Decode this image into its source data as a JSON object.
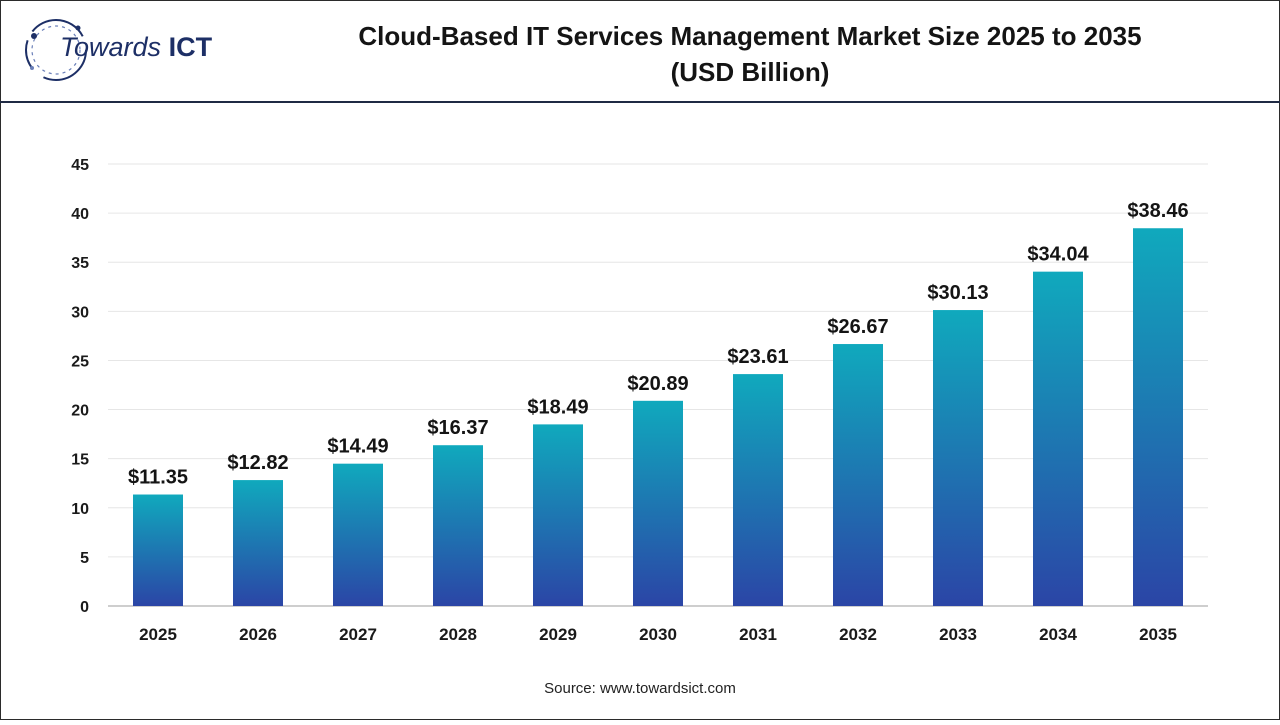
{
  "logo": {
    "text_a": "Towards ",
    "text_b": "ICT"
  },
  "header": {
    "title_line1": "Cloud-Based IT Services Management Market Size 2025 to 2035",
    "title_line2": "(USD Billion)"
  },
  "source": "Source: www.towardsict.com",
  "colors": {
    "bar_top": "#10a9bd",
    "bar_bottom": "#2b45a6",
    "grid": "#e6e6e6",
    "axis": "#bdbdbd"
  },
  "chart_data": {
    "type": "bar",
    "categories": [
      "2025",
      "2026",
      "2027",
      "2028",
      "2029",
      "2030",
      "2031",
      "2032",
      "2033",
      "2034",
      "2035"
    ],
    "values": [
      11.35,
      12.82,
      14.49,
      16.37,
      18.49,
      20.89,
      23.61,
      26.67,
      30.13,
      34.04,
      38.46
    ],
    "data_labels": [
      "$11.35",
      "$12.82",
      "$14.49",
      "$16.37",
      "$18.49",
      "$20.89",
      "$23.61",
      "$26.67",
      "$30.13",
      "$34.04",
      "$38.46"
    ],
    "yticks": [
      0,
      5,
      10,
      15,
      20,
      25,
      30,
      35,
      40,
      45
    ],
    "ylim": [
      0,
      45
    ],
    "grid": true,
    "title": "Cloud-Based IT Services Management Market Size 2025 to 2035 (USD Billion)"
  }
}
